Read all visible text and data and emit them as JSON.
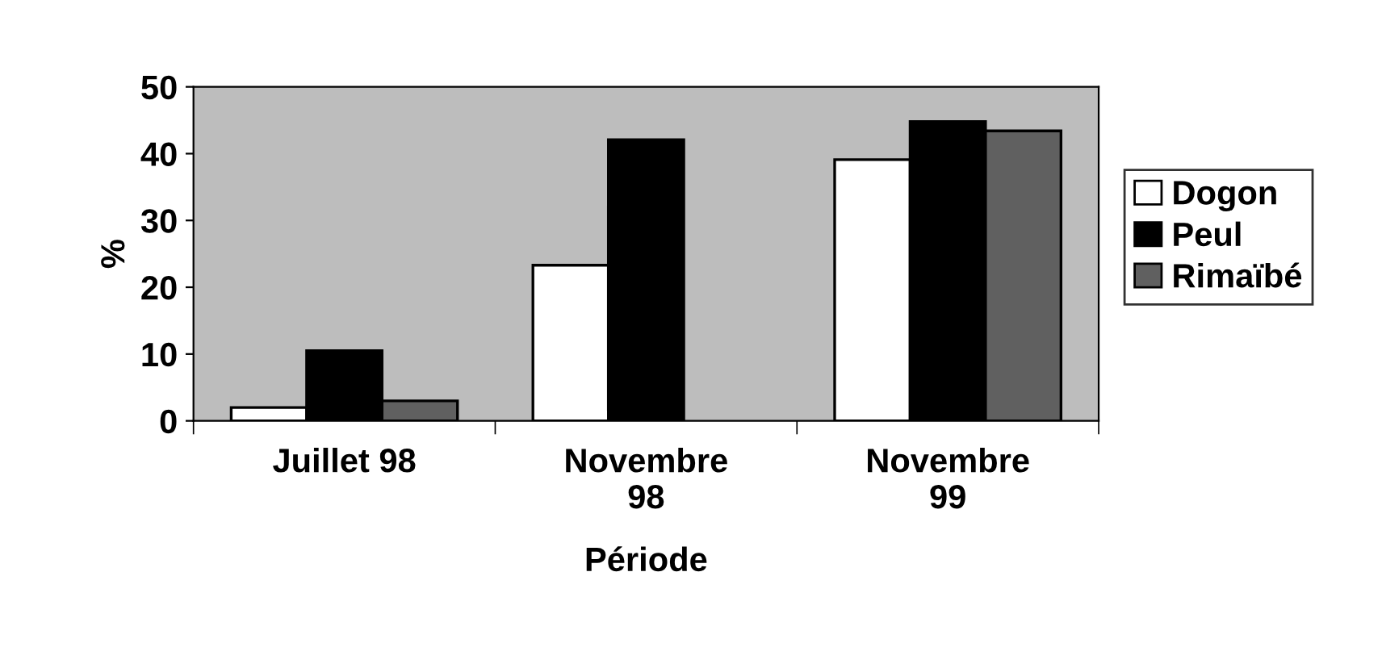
{
  "chart_data": {
    "type": "bar",
    "xlabel": "Période",
    "ylabel": "%",
    "categories": [
      "Juillet 98",
      "Novembre\n98",
      "Novembre\n99"
    ],
    "series": [
      {
        "name": "Dogon",
        "color": "#ffffff",
        "values": [
          2,
          23.3,
          39.1
        ]
      },
      {
        "name": "Peul",
        "color": "#000000",
        "values": [
          10.5,
          42.1,
          44.8
        ]
      },
      {
        "name": "Rimaïbé",
        "color": "#606060",
        "values": [
          3,
          null,
          43.4
        ]
      }
    ],
    "ylim": [
      0,
      50
    ],
    "yticks": [
      0,
      10,
      20,
      30,
      40,
      50
    ],
    "grid": false,
    "legend": "right"
  }
}
